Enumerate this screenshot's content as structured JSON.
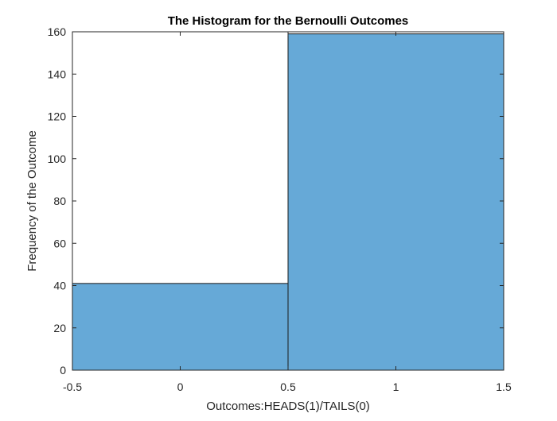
{
  "chart_data": {
    "type": "bar",
    "title": "The Histogram for the Bernoulli Outcomes",
    "xlabel": "Outcomes:HEADS(1)/TAILS(0)",
    "ylabel": "Frequency of the Outcome",
    "xlim": [
      -0.5,
      1.5
    ],
    "ylim": [
      0,
      160
    ],
    "x_ticks": [
      -0.5,
      0,
      0.5,
      1,
      1.5
    ],
    "x_tick_labels": [
      "-0.5",
      "0",
      "0.5",
      "1",
      "1.5"
    ],
    "y_ticks": [
      0,
      20,
      40,
      60,
      80,
      100,
      120,
      140,
      160
    ],
    "y_tick_labels": [
      "0",
      "20",
      "40",
      "60",
      "80",
      "100",
      "120",
      "140",
      "160"
    ],
    "bins": [
      {
        "x_start": -0.5,
        "x_end": 0.5,
        "value": 41
      },
      {
        "x_start": 0.5,
        "x_end": 1.5,
        "value": 159
      }
    ],
    "grid": false,
    "legend": "none",
    "colors": {
      "bar_fill": "#66a9d7",
      "bar_edge": "#1a1a1a",
      "axis": "#262626"
    }
  }
}
